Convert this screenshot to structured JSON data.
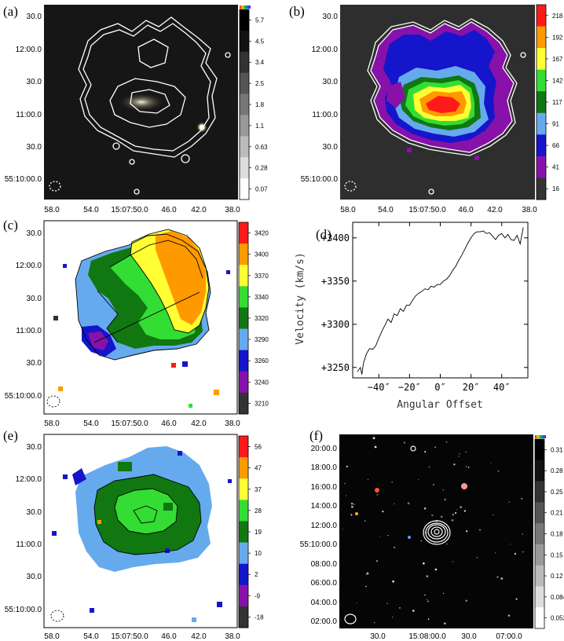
{
  "chart_data": [
    {
      "panel": "(a)",
      "type": "heatmap",
      "background": "#161616",
      "contour_color": "#ffffff",
      "xticks": [
        "58.0",
        "54.0",
        "15:07:50.0",
        "46.0",
        "42.0",
        "38.0"
      ],
      "yticks": [
        "30.0",
        "12:00.0",
        "30.0",
        "11:00.0",
        "30.0",
        "55:10:00.0"
      ],
      "colorbar": {
        "colors": [
          "#000000",
          "#111111",
          "#333333",
          "#555555",
          "#777777",
          "#999999",
          "#bbbbbb",
          "#dddddd",
          "#ffffff"
        ],
        "labels": [
          "5.7",
          "4.5",
          "3.4",
          "2.5",
          "1.8",
          "1.1",
          "0.63",
          "0.28",
          "0.07"
        ]
      }
    },
    {
      "panel": "(b)",
      "type": "heatmap",
      "background": "#2e2e2e",
      "contour_color": "#ffffff",
      "xticks": [
        "58.0",
        "54.0",
        "15:07:50.0",
        "46.0",
        "42.0",
        "38.0"
      ],
      "yticks": [
        "30.0",
        "12:00.0",
        "30.0",
        "11:00.0",
        "30.0",
        "55:10:00.0"
      ],
      "colorbar": {
        "colors": [
          "#ff1a1a",
          "#ff9900",
          "#ffff33",
          "#33dd33",
          "#117711",
          "#66aaee",
          "#1515cc",
          "#8811aa",
          "#333333"
        ],
        "labels": [
          "218",
          "192",
          "167",
          "142",
          "117",
          "91",
          "66",
          "41",
          "16"
        ]
      }
    },
    {
      "panel": "(c)",
      "type": "heatmap",
      "background": "#ffffff",
      "contour_color": "#000000",
      "xticks": [
        "58.0",
        "54.0",
        "15:07:50.0",
        "46.0",
        "42.0",
        "38.0"
      ],
      "yticks": [
        "30.0",
        "12:00.0",
        "30.0",
        "11:00.0",
        "30.0",
        "55:10:00.0"
      ],
      "colorbar": {
        "colors": [
          "#ff1a1a",
          "#ff9900",
          "#ffff33",
          "#33dd33",
          "#117711",
          "#66aaee",
          "#1515cc",
          "#8811aa",
          "#333333"
        ],
        "labels": [
          "3420",
          "3400",
          "3370",
          "3340",
          "3320",
          "3290",
          "3260",
          "3240",
          "3210"
        ]
      }
    },
    {
      "panel": "(d)",
      "type": "line",
      "xlabel": "Angular Offset",
      "ylabel": "Velocity (km/s)",
      "xlim": [
        -57,
        57
      ],
      "ylim": [
        3238,
        3418
      ],
      "xticks": [
        -40,
        -20,
        0,
        20,
        40
      ],
      "xtick_labels": [
        "−40″",
        "−20″",
        "0″",
        "20″",
        "40″"
      ],
      "yticks": [
        3250,
        3300,
        3350,
        3400
      ],
      "ytick_labels": [
        "+3250",
        "+3300",
        "+3350",
        "+3400"
      ],
      "series": [
        {
          "x": [
            -54,
            -52,
            -51,
            -50,
            -48,
            -46,
            -44,
            -42,
            -40,
            -38,
            -36,
            -34,
            -32,
            -30,
            -28,
            -26,
            -24,
            -22,
            -20,
            -18,
            -16,
            -14,
            -12,
            -10,
            -8,
            -6,
            -4,
            -2,
            0,
            2,
            4,
            6,
            8,
            10,
            12,
            14,
            16,
            18,
            20,
            22,
            24,
            26,
            28,
            30,
            32,
            34,
            36,
            38,
            40,
            42,
            44,
            46,
            48,
            50,
            52,
            54
          ],
          "y": [
            3245,
            3250,
            3242,
            3255,
            3266,
            3272,
            3271,
            3275,
            3284,
            3292,
            3299,
            3306,
            3302,
            3312,
            3310,
            3318,
            3315,
            3322,
            3322,
            3328,
            3333,
            3336,
            3338,
            3341,
            3340,
            3344,
            3343,
            3346,
            3346,
            3350,
            3352,
            3356,
            3362,
            3367,
            3374,
            3380,
            3387,
            3394,
            3400,
            3405,
            3407,
            3407,
            3408,
            3405,
            3406,
            3402,
            3398,
            3403,
            3405,
            3400,
            3404,
            3398,
            3397,
            3403,
            3393,
            3412
          ]
        }
      ]
    },
    {
      "panel": "(e)",
      "type": "heatmap",
      "background": "#ffffff",
      "contour_color": "#000000",
      "xticks": [
        "58.0",
        "54.0",
        "15:07:50.0",
        "46.0",
        "42.0",
        "38.0"
      ],
      "yticks": [
        "30.0",
        "12:00.0",
        "30.0",
        "11:00.0",
        "30.0",
        "55:10:00.0"
      ],
      "colorbar": {
        "colors": [
          "#ff1a1a",
          "#ff9900",
          "#ffff33",
          "#33dd33",
          "#117711",
          "#66aaee",
          "#1515cc",
          "#8811aa",
          "#333333"
        ],
        "labels": [
          "56",
          "47",
          "37",
          "28",
          "19",
          "10",
          "2",
          "-9",
          "-18"
        ]
      }
    },
    {
      "panel": "(f)",
      "type": "heatmap",
      "background": "#050505",
      "contour_color": "#ffffff",
      "xticks": [
        "30.0",
        "15:08:00.0",
        "30.0",
        "07:00.0"
      ],
      "yticks": [
        "20:00.0",
        "18:00.0",
        "16:00.0",
        "14:00.0",
        "12:00.0",
        "55:10:00.0",
        "08:00.0",
        "06:00.0",
        "04:00.0",
        "02:00.0"
      ],
      "colorbar": {
        "colors": [
          "#000000",
          "#111111",
          "#333333",
          "#555555",
          "#777777",
          "#999999",
          "#bbbbbb",
          "#dddddd",
          "#ffffff"
        ],
        "labels": [
          "0.31",
          "0.28",
          "0.25",
          "0.21",
          "0.18",
          "0.15",
          "0.12",
          "0.084",
          "0.052"
        ]
      }
    }
  ]
}
